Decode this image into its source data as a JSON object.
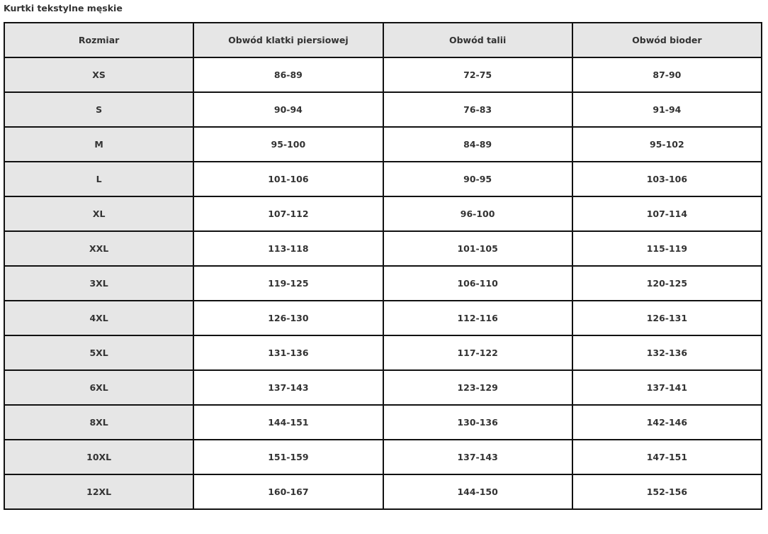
{
  "title": "Kurtki tekstylne męskie",
  "colors": {
    "header_bg": "#e6e6e6",
    "border": "#111111"
  },
  "table": {
    "headers": [
      "Rozmiar",
      "Obwód klatki piersiowej",
      "Obwód talii",
      "Obwód bioder"
    ],
    "rows": [
      [
        "XS",
        "86-89",
        "72-75",
        "87-90"
      ],
      [
        "S",
        "90-94",
        "76-83",
        "91-94"
      ],
      [
        "M",
        "95-100",
        "84-89",
        "95-102"
      ],
      [
        "L",
        "101-106",
        "90-95",
        "103-106"
      ],
      [
        "XL",
        "107-112",
        "96-100",
        "107-114"
      ],
      [
        "XXL",
        "113-118",
        "101-105",
        "115-119"
      ],
      [
        "3XL",
        "119-125",
        "106-110",
        "120-125"
      ],
      [
        "4XL",
        "126-130",
        "112-116",
        "126-131"
      ],
      [
        "5XL",
        "131-136",
        "117-122",
        "132-136"
      ],
      [
        "6XL",
        "137-143",
        "123-129",
        "137-141"
      ],
      [
        "8XL",
        "144-151",
        "130-136",
        "142-146"
      ],
      [
        "10XL",
        "151-159",
        "137-143",
        "147-151"
      ],
      [
        "12XL",
        "160-167",
        "144-150",
        "152-156"
      ]
    ]
  }
}
